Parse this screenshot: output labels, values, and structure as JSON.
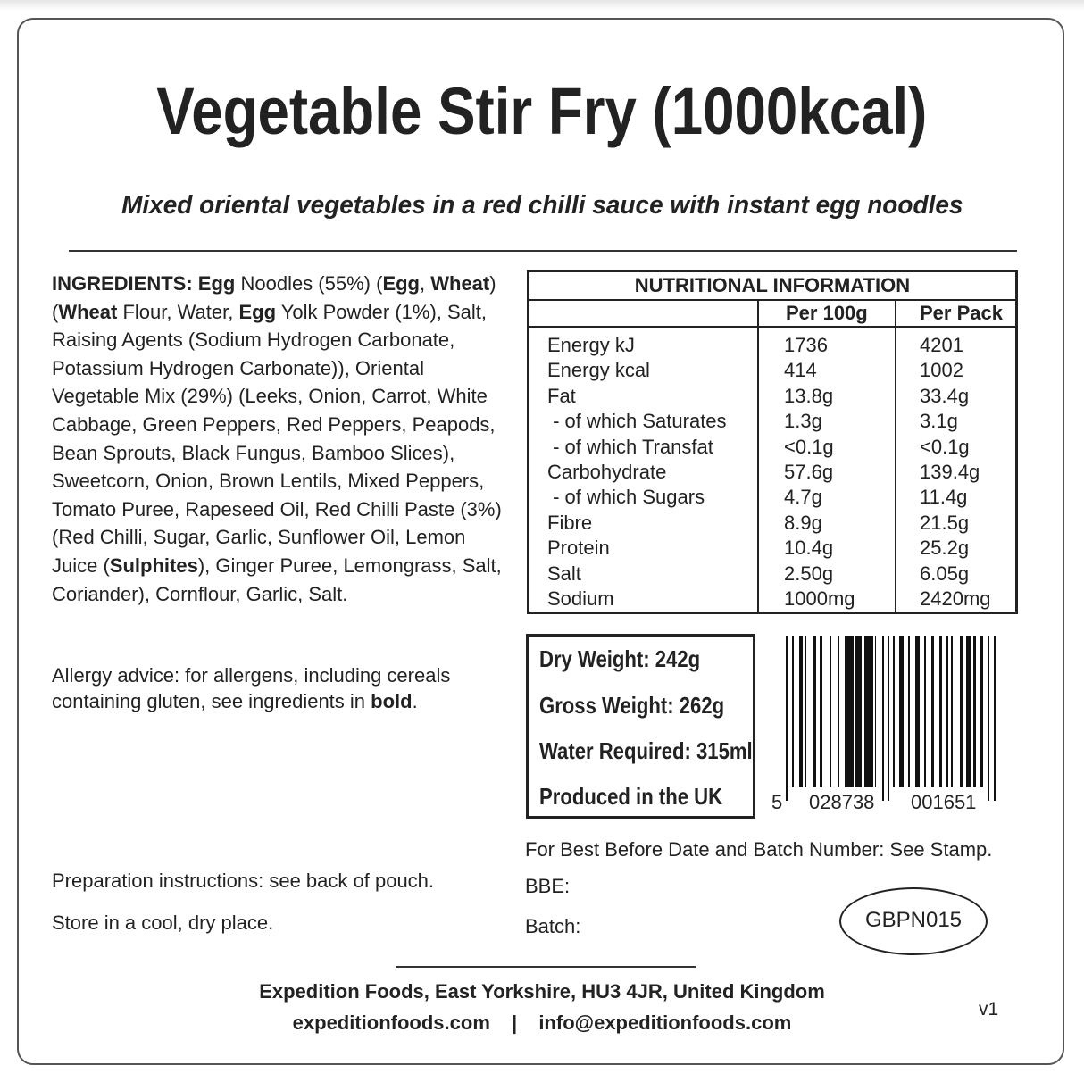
{
  "title": "Vegetable Stir Fry (1000kcal)",
  "subtitle": "Mixed oriental vegetables in a red chilli sauce with instant egg noodles",
  "ingredients": [
    {
      "text": "INGREDIENTS: ",
      "bold": true
    },
    {
      "text": "Egg",
      "bold": true
    },
    {
      "text": " Noodles (55%) (",
      "bold": false
    },
    {
      "text": "Egg",
      "bold": true
    },
    {
      "text": ", ",
      "bold": false
    },
    {
      "text": "Wheat",
      "bold": true
    },
    {
      "text": ") (",
      "bold": false
    },
    {
      "text": "Wheat",
      "bold": true
    },
    {
      "text": " Flour, Water, ",
      "bold": false
    },
    {
      "text": "Egg",
      "bold": true
    },
    {
      "text": " Yolk Powder (1%), Salt, Raising Agents (Sodium Hydrogen Carbonate, Potassium Hydrogen Carbonate)), Oriental Vegetable Mix (29%) (Leeks, Onion, Carrot, White Cabbage, Green Peppers, Red Peppers, Peapods, Bean Sprouts, Black Fungus, Bamboo Slices), Sweetcorn, Onion, Brown Lentils, Mixed Peppers, Tomato Puree, Rapeseed Oil, Red Chilli Paste (3%) (Red Chilli, Sugar, Garlic, Sunflower Oil, Lemon Juice (",
      "bold": false
    },
    {
      "text": "Sulphites",
      "bold": true
    },
    {
      "text": "), Ginger Puree, Lemongrass, Salt, Coriander), Cornflour, Garlic, Salt.",
      "bold": false
    }
  ],
  "allergy": {
    "line1": "Allergy advice: for allergens, including cereals",
    "line2_prefix": "containing gluten, see ingredients in ",
    "line2_bold": "bold",
    "line2_suffix": "."
  },
  "preparation": "Preparation instructions: see back of pouch.",
  "storage": "Store in a cool, dry place.",
  "nutrition": {
    "heading": "NUTRITIONAL INFORMATION",
    "col_per100": "Per 100g",
    "col_perpack": "Per Pack",
    "rows": [
      {
        "name": "Energy kJ",
        "per100": "1736",
        "perpack": "4201"
      },
      {
        "name": "Energy kcal",
        "per100": "414",
        "perpack": "1002"
      },
      {
        "name": "Fat",
        "per100": "13.8g",
        "perpack": "33.4g"
      },
      {
        "name": " - of which Saturates",
        "per100": "1.3g",
        "perpack": "3.1g"
      },
      {
        "name": " - of which Transfat",
        "per100": "<0.1g",
        "perpack": "<0.1g"
      },
      {
        "name": "Carbohydrate",
        "per100": "57.6g",
        "perpack": "139.4g"
      },
      {
        "name": " - of which Sugars",
        "per100": "4.7g",
        "perpack": "11.4g"
      },
      {
        "name": "Fibre",
        "per100": "8.9g",
        "perpack": "21.5g"
      },
      {
        "name": "Protein",
        "per100": "10.4g",
        "perpack": "25.2g"
      },
      {
        "name": "Salt",
        "per100": "2.50g",
        "perpack": "6.05g"
      },
      {
        "name": "Sodium",
        "per100": "1000mg",
        "perpack": "2420mg"
      }
    ]
  },
  "info": {
    "dry_weight": "Dry Weight: 242g",
    "gross_weight": "Gross Weight: 262g",
    "water": "Water Required: 315ml",
    "origin": "Produced in the UK"
  },
  "barcode": {
    "first": "5",
    "left": "028738",
    "right": "001651"
  },
  "best_before": "For Best Before Date and Batch Number: See Stamp.",
  "bbe_label": "BBE:",
  "batch_label": "Batch:",
  "batch_code": "GBPN015",
  "footer": {
    "address": "Expedition Foods, East Yorkshire, HU3 4JR, United Kingdom",
    "website": "expeditionfoods.com",
    "separator": "|",
    "email": "info@expeditionfoods.com",
    "version": "v1"
  }
}
